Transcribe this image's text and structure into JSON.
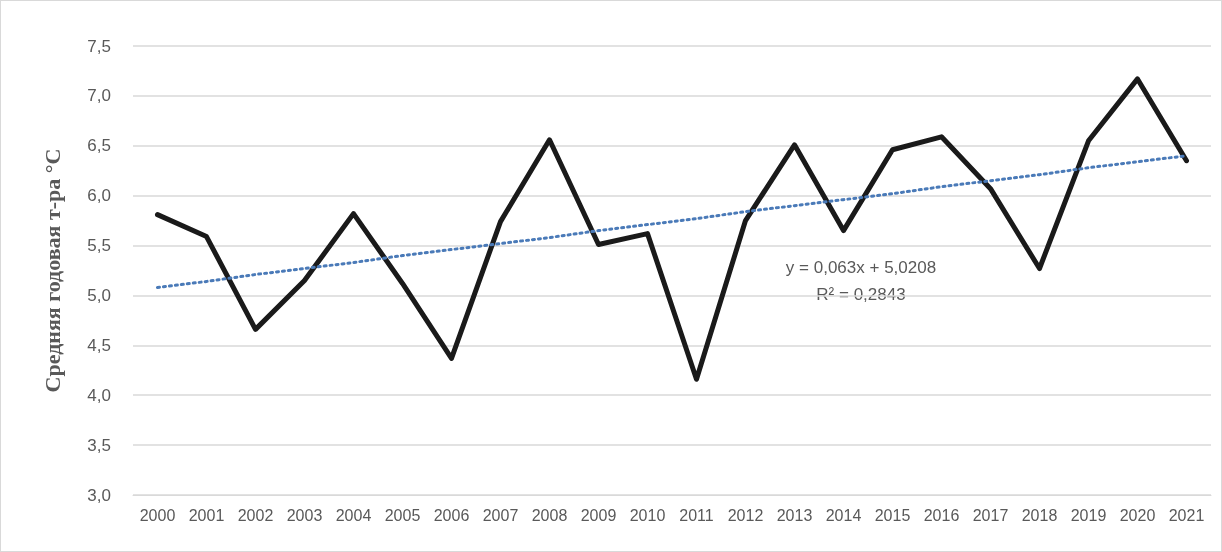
{
  "chart_data": {
    "type": "line",
    "ylabel": "Средняя годовая т-ра °С",
    "categories": [
      "2000",
      "2001",
      "2002",
      "2003",
      "2004",
      "2005",
      "2006",
      "2007",
      "2008",
      "2009",
      "2010",
      "2011",
      "2012",
      "2013",
      "2014",
      "2015",
      "2016",
      "2017",
      "2018",
      "2019",
      "2020",
      "2021"
    ],
    "series": [
      {
        "color": "#1a1a1a",
        "values": [
          5.81,
          5.59,
          4.66,
          5.15,
          5.82,
          5.12,
          4.37,
          5.74,
          6.56,
          5.51,
          5.62,
          4.16,
          5.75,
          6.51,
          5.65,
          6.46,
          6.59,
          6.07,
          5.27,
          6.55,
          7.17,
          6.35
        ]
      },
      {
        "type": "line",
        "color": "#4a7ab8",
        "line_style": "dotted",
        "values": [
          5.08,
          5.14,
          5.21,
          5.27,
          5.33,
          5.4,
          5.46,
          5.52,
          5.58,
          5.65,
          5.71,
          5.77,
          5.84,
          5.9,
          5.96,
          6.02,
          6.09,
          6.15,
          6.21,
          6.28,
          6.34,
          6.4
        ]
      }
    ],
    "ylim": [
      3.0,
      7.5
    ],
    "yticks": [
      {
        "value": 3.0,
        "label": "3,0"
      },
      {
        "value": 3.5,
        "label": "3,5"
      },
      {
        "value": 4.0,
        "label": "4,0"
      },
      {
        "value": 4.5,
        "label": "4,5"
      },
      {
        "value": 5.0,
        "label": "5,0"
      },
      {
        "value": 5.5,
        "label": "5,5"
      },
      {
        "value": 6.0,
        "label": "6,0"
      },
      {
        "value": 6.5,
        "label": "6,5"
      },
      {
        "value": 7.0,
        "label": "7,0"
      },
      {
        "value": 7.5,
        "label": "7,5"
      }
    ],
    "grid": "y",
    "marker": "none",
    "annotations": [
      "y = 0,063x + 5,0208",
      "R² = 0,2843"
    ]
  }
}
